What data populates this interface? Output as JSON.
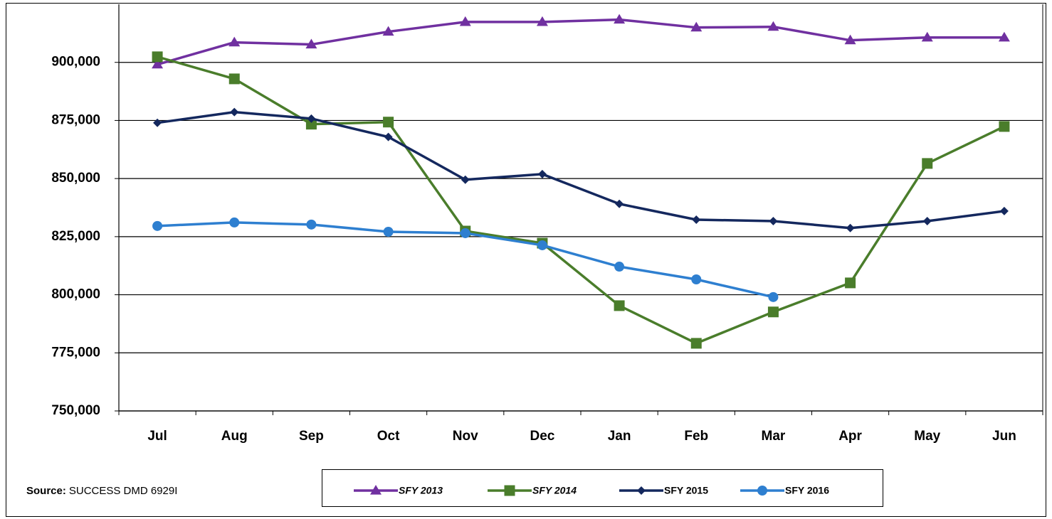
{
  "chart_data": {
    "type": "line",
    "categories": [
      "Jul",
      "Aug",
      "Sep",
      "Oct",
      "Nov",
      "Dec",
      "Jan",
      "Feb",
      "Mar",
      "Apr",
      "May",
      "Jun"
    ],
    "ylim": [
      750000,
      925000
    ],
    "yticks": [
      {
        "value": 750000,
        "label": "750,000"
      },
      {
        "value": 775000,
        "label": "775,000"
      },
      {
        "value": 800000,
        "label": "800,000"
      },
      {
        "value": 825000,
        "label": "825,000"
      },
      {
        "value": 850000,
        "label": "850,000"
      },
      {
        "value": 875000,
        "label": "875,000"
      },
      {
        "value": 900000,
        "label": "900,000"
      }
    ],
    "grid": true,
    "series": [
      {
        "name": "SFY 2013",
        "color": "#7030a0",
        "marker": "triangle",
        "italic": true,
        "values": [
          899100,
          908600,
          907700,
          913200,
          917400,
          917400,
          918400,
          915000,
          915300,
          909500,
          910700,
          910700
        ]
      },
      {
        "name": "SFY 2014",
        "color": "#4a7d2b",
        "marker": "square",
        "italic": true,
        "values": [
          902400,
          892900,
          873400,
          874300,
          827400,
          822200,
          795300,
          779100,
          792600,
          805100,
          856500,
          872400
        ]
      },
      {
        "name": "SFY 2015",
        "color": "#14285e",
        "marker": "diamond",
        "italic": false,
        "values": [
          874000,
          878600,
          875800,
          867900,
          849500,
          851900,
          839100,
          832300,
          831700,
          828700,
          831700,
          836000
        ]
      },
      {
        "name": "SFY 2016",
        "color": "#2e7fd0",
        "marker": "circle",
        "italic": false,
        "values": [
          829600,
          831100,
          830200,
          827100,
          826500,
          821300,
          812100,
          806600,
          799000,
          null,
          null,
          null
        ]
      }
    ],
    "source": {
      "label": "Source:",
      "text": "SUCCESS DMD 6929I"
    }
  }
}
